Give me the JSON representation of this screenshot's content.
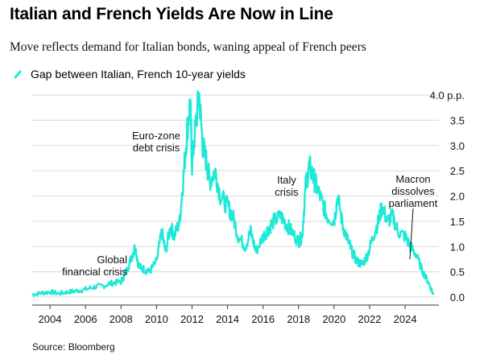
{
  "title": "Italian and French Yields Are Now in Line",
  "subtitle": "Move reflects demand for Italian bonds, waning appeal of French peers",
  "source": "Source: Bloomberg",
  "colors": {
    "line": "#1de9d6",
    "grid": "#d9d9d9",
    "annotation": "#111111"
  },
  "chart_data": {
    "type": "line",
    "ylim": [
      0,
      4.0
    ],
    "xlim": [
      2003,
      2025.9
    ],
    "y_unit_label": "4.0 p.p.",
    "y_ticks": [
      0.0,
      0.5,
      1.0,
      1.5,
      2.0,
      2.5,
      3.0,
      3.5,
      4.0
    ],
    "y_tick_labels": [
      "0.0",
      "0.5",
      "1.0",
      "1.5",
      "2.0",
      "2.5",
      "3.0",
      "3.5",
      "4.0 p.p."
    ],
    "x_ticks": [
      2004,
      2006,
      2008,
      2010,
      2012,
      2014,
      2016,
      2018,
      2020,
      2022,
      2024
    ],
    "x_tick_labels": [
      "2004",
      "2006",
      "2008",
      "2010",
      "2012",
      "2014",
      "2016",
      "2018",
      "2020",
      "2022",
      "2024"
    ],
    "grid": true,
    "legend": "top-left",
    "series": [
      {
        "name": "Gap between Italian, French 10-year yields",
        "x": [
          2003.0,
          2003.5,
          2004.0,
          2004.5,
          2005.0,
          2005.5,
          2006.0,
          2006.5,
          2007.0,
          2007.5,
          2008.0,
          2008.3,
          2008.6,
          2008.8,
          2009.0,
          2009.3,
          2009.6,
          2010.0,
          2010.3,
          2010.5,
          2010.8,
          2011.0,
          2011.3,
          2011.5,
          2011.7,
          2011.9,
          2012.0,
          2012.2,
          2012.4,
          2012.6,
          2012.8,
          2013.0,
          2013.3,
          2013.6,
          2014.0,
          2014.3,
          2014.6,
          2015.0,
          2015.3,
          2015.6,
          2016.0,
          2016.3,
          2016.6,
          2017.0,
          2017.3,
          2017.6,
          2018.0,
          2018.2,
          2018.4,
          2018.6,
          2018.8,
          2019.0,
          2019.3,
          2019.6,
          2020.0,
          2020.2,
          2020.5,
          2020.8,
          2021.0,
          2021.3,
          2021.6,
          2021.9,
          2022.2,
          2022.5,
          2022.7,
          2023.0,
          2023.3,
          2023.6,
          2024.0,
          2024.3,
          2024.6,
          2025.0,
          2025.3,
          2025.6
        ],
        "y": [
          0.05,
          0.08,
          0.1,
          0.07,
          0.1,
          0.12,
          0.15,
          0.2,
          0.22,
          0.28,
          0.3,
          0.5,
          0.8,
          1.0,
          0.6,
          0.55,
          0.5,
          0.7,
          1.3,
          0.9,
          1.4,
          1.2,
          1.5,
          2.3,
          3.2,
          3.9,
          2.6,
          3.4,
          4.0,
          3.0,
          2.7,
          2.3,
          2.5,
          2.0,
          1.8,
          1.6,
          1.2,
          1.0,
          1.3,
          0.9,
          1.2,
          1.35,
          1.5,
          1.6,
          1.45,
          1.3,
          1.1,
          1.2,
          2.2,
          2.6,
          2.4,
          2.2,
          1.9,
          1.6,
          1.5,
          2.0,
          1.4,
          1.1,
          0.9,
          0.7,
          0.65,
          0.85,
          1.2,
          1.5,
          1.8,
          1.5,
          1.6,
          1.3,
          1.2,
          1.0,
          0.85,
          0.5,
          0.3,
          0.05
        ]
      }
    ],
    "annotations": [
      {
        "lines": [
          "Global",
          "financial crisis"
        ],
        "x": 2008.8,
        "y": 1.0
      },
      {
        "lines": [
          "Euro-zone",
          "debt crisis"
        ],
        "x": 2011.9,
        "y": 3.0
      },
      {
        "lines": [
          "Italy",
          "crisis"
        ],
        "x": 2018.4,
        "y": 2.2
      },
      {
        "lines": [
          "Macron",
          "dissolves",
          "parliament"
        ],
        "x": 2024.4,
        "y": 0.85
      }
    ]
  }
}
